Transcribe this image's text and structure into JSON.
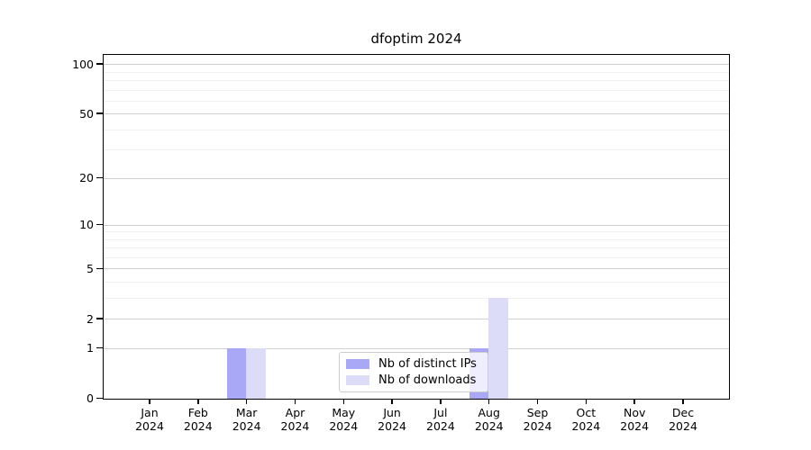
{
  "colors": {
    "grid_major": "#d0d0d0",
    "grid_minor": "#f0f0f0",
    "spine": "#000000",
    "legend_border": "#cccccc",
    "background": "#ffffff"
  },
  "chart_data": {
    "type": "bar",
    "title": "dfoptim 2024",
    "x_months": [
      "Jan",
      "Feb",
      "Mar",
      "Apr",
      "May",
      "Jun",
      "Jul",
      "Aug",
      "Sep",
      "Oct",
      "Nov",
      "Dec"
    ],
    "x_year": "2024",
    "series": [
      {
        "name": "Nb of distinct IPs",
        "color": "#a8a8f7",
        "values": [
          0,
          0,
          1,
          0,
          0,
          0,
          0,
          1,
          0,
          0,
          0,
          0
        ]
      },
      {
        "name": "Nb of downloads",
        "color": "#dcdcf8",
        "values": [
          0,
          0,
          1,
          0,
          0,
          0,
          0,
          3,
          0,
          0,
          0,
          0
        ]
      }
    ],
    "y_scale": "log1p",
    "y_major_ticks": [
      0,
      1,
      2,
      5,
      10,
      20,
      50,
      100
    ],
    "y_minor_gridlines": [
      3,
      4,
      6,
      7,
      8,
      9,
      30,
      40,
      60,
      70,
      80,
      90
    ],
    "y_top": 113,
    "grid": true,
    "legend_position": "lower-center-inside"
  }
}
